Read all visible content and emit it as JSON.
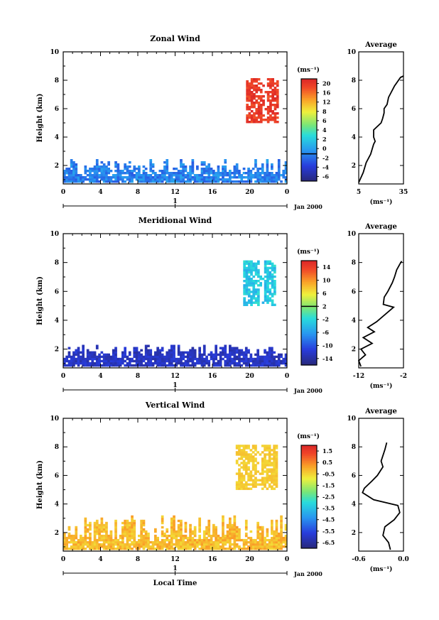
{
  "chart_data": [
    {
      "type": "heatmap",
      "title": "Zonal Wind",
      "ylabel": "Height (km)",
      "xlabel": "",
      "xlim": [
        0,
        24
      ],
      "ylim": [
        0.7,
        10
      ],
      "xticks": [
        "0",
        "4",
        "8",
        "12",
        "16",
        "20",
        "0"
      ],
      "yticks": [
        "2",
        "4",
        "6",
        "8",
        "10"
      ],
      "date_axis": {
        "day": "1",
        "label": "Jan 2000"
      },
      "colorbar": {
        "unit": "(ms⁻¹)",
        "min": -8,
        "max": 22,
        "labels": [
          "-6",
          "-4",
          "-2",
          "0",
          "2",
          "4",
          "6",
          "8",
          "12",
          "16",
          "20"
        ],
        "contour": 0
      },
      "profile": {
        "title": "Average",
        "xlim": [
          5,
          35
        ],
        "xticks": [
          "5",
          "35"
        ],
        "xlabel": "(ms⁻¹)",
        "points": [
          [
            5,
            0.8
          ],
          [
            8,
            1.5
          ],
          [
            10,
            2.2
          ],
          [
            13,
            2.8
          ],
          [
            15,
            3.5
          ],
          [
            16,
            3.7
          ],
          [
            15,
            4.0
          ],
          [
            15,
            4.5
          ],
          [
            18,
            4.8
          ],
          [
            20,
            5.0
          ],
          [
            21,
            5.3
          ],
          [
            22,
            5.7
          ],
          [
            22,
            6.0
          ],
          [
            24,
            6.3
          ],
          [
            25,
            6.8
          ],
          [
            27,
            7.2
          ],
          [
            29,
            7.6
          ],
          [
            31,
            7.9
          ],
          [
            33,
            8.2
          ],
          [
            35,
            8.3
          ]
        ]
      },
      "regions": [
        {
          "name": "low",
          "x": [
            0,
            24
          ],
          "y": [
            0.8,
            2.4
          ],
          "values": [
            -2,
            2
          ]
        },
        {
          "name": "upper",
          "x": [
            19.6,
            23.0
          ],
          "y": [
            5.0,
            8.1
          ],
          "values": [
            19,
            22
          ]
        }
      ]
    },
    {
      "type": "heatmap",
      "title": "Meridional Wind",
      "ylabel": "Height (km)",
      "xlabel": "",
      "xlim": [
        0,
        24
      ],
      "ylim": [
        0.7,
        10
      ],
      "xticks": [
        "0",
        "4",
        "8",
        "12",
        "16",
        "20",
        "0"
      ],
      "yticks": [
        "2",
        "4",
        "6",
        "8",
        "10"
      ],
      "date_axis": {
        "day": "1",
        "label": "Jan 2000"
      },
      "colorbar": {
        "unit": "(ms⁻¹)",
        "min": -16,
        "max": 16,
        "labels": [
          "-14",
          "-10",
          "-6",
          "-2",
          "2",
          "6",
          "10",
          "14"
        ],
        "contour": 2
      },
      "profile": {
        "title": "Average",
        "xlim": [
          -12,
          -2
        ],
        "xticks": [
          "-12",
          "-2"
        ],
        "xlabel": "(ms⁻¹)",
        "points": [
          [
            -11.5,
            0.8
          ],
          [
            -12,
            1.2
          ],
          [
            -10.5,
            1.6
          ],
          [
            -11.5,
            2.0
          ],
          [
            -9,
            2.4
          ],
          [
            -11,
            2.8
          ],
          [
            -8.5,
            3.2
          ],
          [
            -10,
            3.5
          ],
          [
            -8,
            3.9
          ],
          [
            -4.2,
            4.9
          ],
          [
            -6.5,
            5.1
          ],
          [
            -6.3,
            5.6
          ],
          [
            -5.5,
            6.0
          ],
          [
            -4.5,
            6.6
          ],
          [
            -4,
            7.0
          ],
          [
            -3.5,
            7.5
          ],
          [
            -2.8,
            7.9
          ],
          [
            -2.4,
            8.1
          ]
        ]
      },
      "regions": [
        {
          "name": "low",
          "x": [
            0,
            24
          ],
          "y": [
            0.8,
            2.3
          ],
          "values": [
            -14,
            -11
          ]
        },
        {
          "name": "upper",
          "x": [
            19.3,
            22.8
          ],
          "y": [
            5.0,
            8.1
          ],
          "values": [
            -5,
            -1
          ]
        }
      ]
    },
    {
      "type": "heatmap",
      "title": "Vertical Wind",
      "ylabel": "Height (km)",
      "xlabel": "Local Time",
      "xlim": [
        0,
        24
      ],
      "ylim": [
        0.7,
        10
      ],
      "xticks": [
        "0",
        "4",
        "8",
        "12",
        "16",
        "20",
        "0"
      ],
      "yticks": [
        "2",
        "4",
        "6",
        "8",
        "10"
      ],
      "date_axis": {
        "day": "1",
        "label": "Jan 2000"
      },
      "colorbar": {
        "unit": "(ms⁻¹)",
        "min": -7,
        "max": 2,
        "labels": [
          "-6.5",
          "-5.5",
          "-4.5",
          "-3.5",
          "-2.5",
          "-1.5",
          "-0.5",
          "0.5",
          "1.5"
        ],
        "contour": null
      },
      "profile": {
        "title": "Average",
        "xlim": [
          -0.8,
          0.4
        ],
        "xticks": [
          "-0.6",
          "0.0"
        ],
        "xlabel": "(ms⁻¹)",
        "points": [
          [
            0.05,
            0.8
          ],
          [
            0.0,
            1.3
          ],
          [
            -0.15,
            1.8
          ],
          [
            -0.1,
            2.4
          ],
          [
            0.15,
            2.9
          ],
          [
            0.3,
            3.4
          ],
          [
            0.25,
            3.9
          ],
          [
            -0.4,
            4.3
          ],
          [
            -0.7,
            4.8
          ],
          [
            -0.65,
            5.1
          ],
          [
            -0.45,
            5.6
          ],
          [
            -0.3,
            6.0
          ],
          [
            -0.15,
            6.6
          ],
          [
            -0.2,
            7.0
          ],
          [
            -0.1,
            7.8
          ],
          [
            -0.05,
            8.3
          ]
        ]
      },
      "regions": [
        {
          "name": "low",
          "x": [
            0,
            24
          ],
          "y": [
            0.8,
            3.2
          ],
          "values": [
            -0.6,
            0.3
          ]
        },
        {
          "name": "upper",
          "x": [
            18.5,
            23.0
          ],
          "y": [
            5.0,
            8.1
          ],
          "values": [
            -0.6,
            -0.2
          ]
        }
      ]
    }
  ]
}
